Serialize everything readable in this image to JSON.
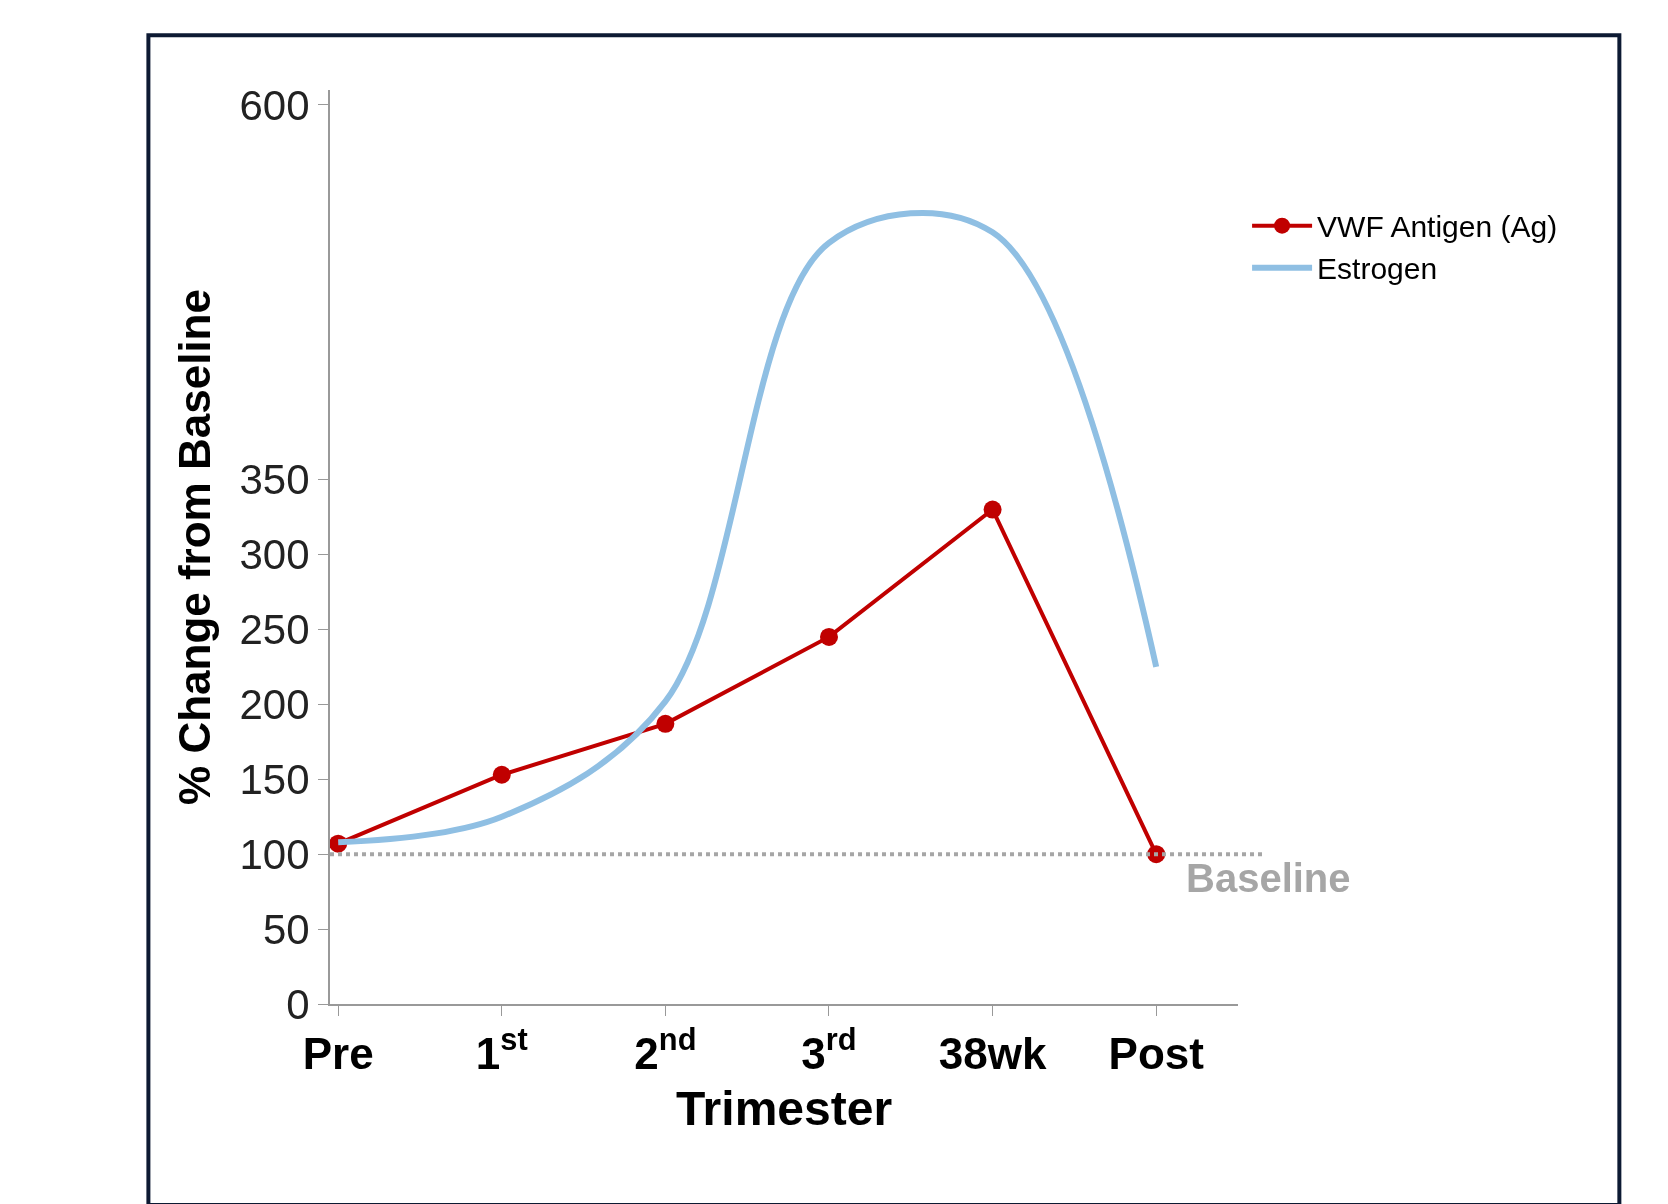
{
  "chart_data": {
    "type": "line",
    "xlabel": "Trimester",
    "ylabel": "% Change from Baseline",
    "categories": [
      "Pre",
      "1$^{st}$",
      "2$^{nd}$",
      "3$^{rd}$",
      "38wk",
      "Post"
    ],
    "ylim": [
      0,
      610
    ],
    "yticks": [
      0,
      50,
      100,
      150,
      200,
      250,
      300,
      350,
      600
    ],
    "series": [
      {
        "name": "VWF Antigen (Ag)",
        "color": "#c00000",
        "values": [
          107,
          153,
          187,
          245,
          330,
          100
        ],
        "marker": "circle",
        "line_style": "solid"
      },
      {
        "name": "Estrogen",
        "color": "#8fbfe3",
        "values": [
          108,
          125,
          202,
          508,
          515,
          225
        ],
        "marker": "none",
        "line_style": "solid"
      }
    ],
    "ref_lines": [
      {
        "axis": "y",
        "value": 100,
        "label": "Baseline",
        "color": "#a6a6a6",
        "line_style": "dotted"
      }
    ],
    "legend": "top right"
  }
}
